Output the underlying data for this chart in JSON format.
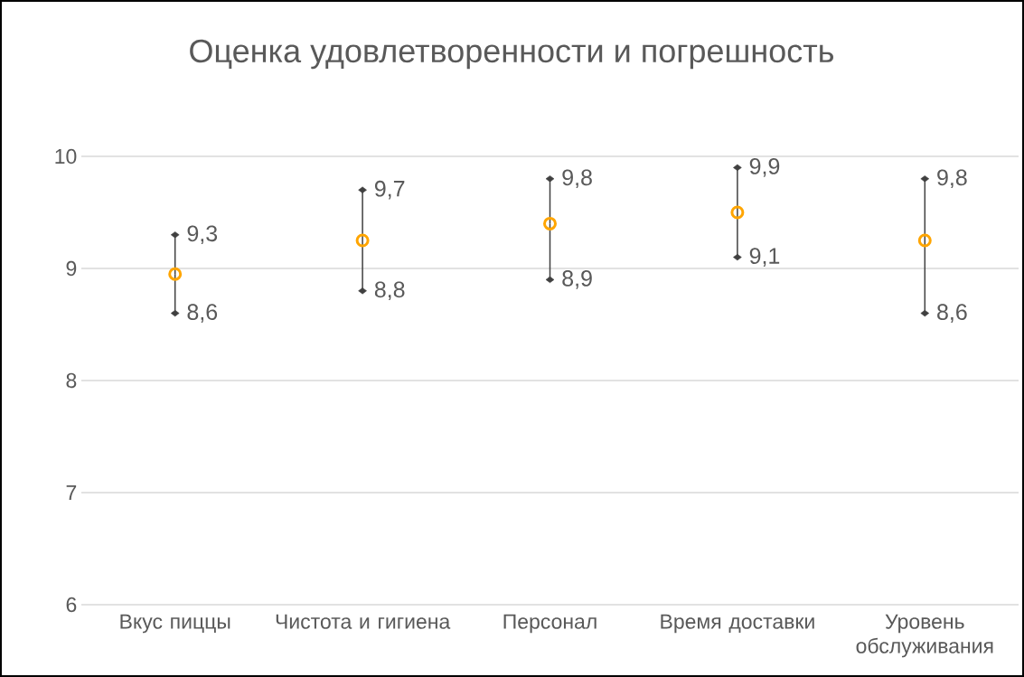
{
  "chart_data": {
    "type": "scatter",
    "title": "Оценка удовлетворенности и погрешность",
    "categories": [
      "Вкус пиццы",
      "Чистота и гигиена",
      "Персонал",
      "Время доставки",
      "Уровень обслуживания"
    ],
    "values": [
      8.95,
      9.25,
      9.4,
      9.5,
      9.25
    ],
    "errors": [
      [
        8.6,
        9.3
      ],
      [
        8.8,
        9.7
      ],
      [
        8.9,
        9.8
      ],
      [
        9.1,
        9.9
      ],
      [
        8.6,
        9.8
      ]
    ],
    "color": "#ffa500",
    "marker": "circle",
    "grid": "y",
    "ylim": [
      6,
      10
    ],
    "yticks": [
      6,
      7,
      8,
      9,
      10
    ],
    "annotations": [
      {
        "text": "9,3",
        "x": "Вкус пиццы",
        "y": 9.3
      },
      {
        "text": "8,6",
        "x": "Вкус пиццы",
        "y": 8.6
      },
      {
        "text": "9,7",
        "x": "Чистота и гигиена",
        "y": 9.7
      },
      {
        "text": "8,8",
        "x": "Чистота и гигиена",
        "y": 8.8
      },
      {
        "text": "9,8",
        "x": "Персонал",
        "y": 9.8
      },
      {
        "text": "8,9",
        "x": "Персонал",
        "y": 8.9
      },
      {
        "text": "9,9",
        "x": "Время доставки",
        "y": 9.9
      },
      {
        "text": "9,1",
        "x": "Время доставки",
        "y": 9.1
      },
      {
        "text": "9,8",
        "x": "Уровень обслуживания",
        "y": 9.8
      },
      {
        "text": "8,6",
        "x": "Уровень обслуживания",
        "y": 8.6
      }
    ]
  }
}
